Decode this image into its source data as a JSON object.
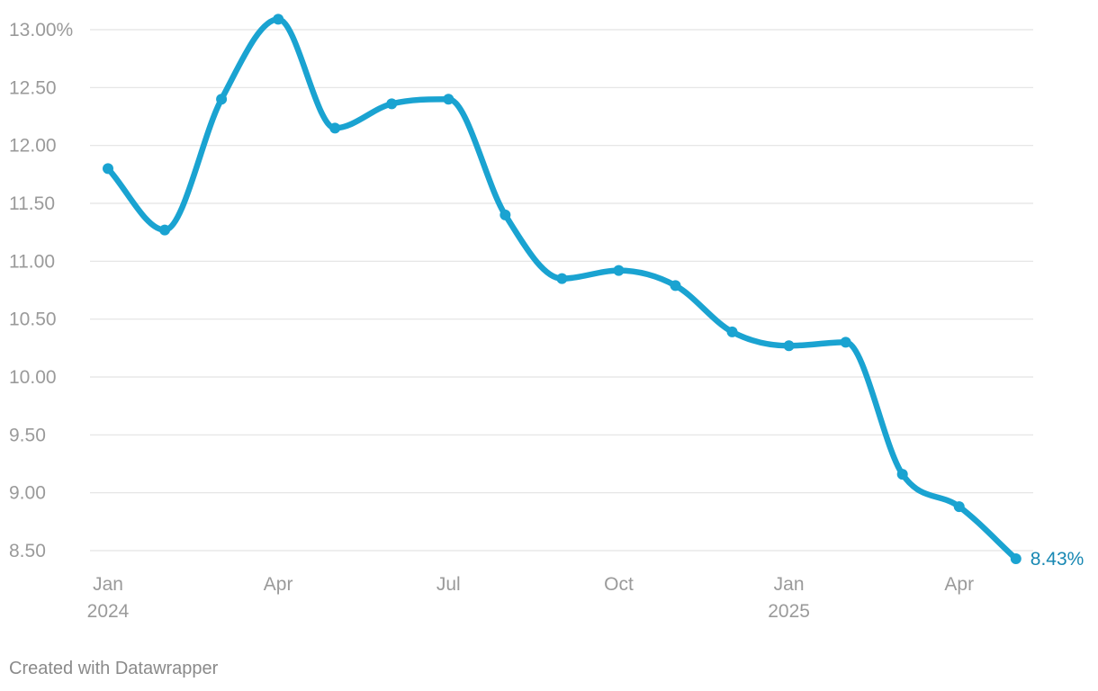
{
  "chart_data": {
    "type": "line",
    "x": [
      "2024-01",
      "2024-02",
      "2024-03",
      "2024-04",
      "2024-05",
      "2024-06",
      "2024-07",
      "2024-08",
      "2024-09",
      "2024-10",
      "2024-11",
      "2024-12",
      "2025-01",
      "2025-02",
      "2025-03",
      "2025-04",
      "2025-05"
    ],
    "series": [
      {
        "values": [
          11.8,
          11.27,
          12.4,
          13.09,
          12.15,
          12.36,
          12.4,
          11.4,
          10.85,
          10.92,
          10.79,
          10.39,
          10.27,
          10.3,
          9.16,
          8.88,
          8.43
        ]
      }
    ],
    "ylim": [
      8.5,
      13.0
    ],
    "y_ticks": [
      {
        "value": 13.0,
        "label": "13.00%"
      },
      {
        "value": 12.5,
        "label": "12.50"
      },
      {
        "value": 12.0,
        "label": "12.00"
      },
      {
        "value": 11.5,
        "label": "11.50"
      },
      {
        "value": 11.0,
        "label": "11.00"
      },
      {
        "value": 10.5,
        "label": "10.50"
      },
      {
        "value": 10.0,
        "label": "10.00"
      },
      {
        "value": 9.5,
        "label": "9.50"
      },
      {
        "value": 9.0,
        "label": "9.00"
      },
      {
        "value": 8.5,
        "label": "8.50"
      }
    ],
    "x_ticks": [
      {
        "x": "2024-01",
        "label": "Jan",
        "sublabel": "2024"
      },
      {
        "x": "2024-04",
        "label": "Apr",
        "sublabel": ""
      },
      {
        "x": "2024-07",
        "label": "Jul",
        "sublabel": ""
      },
      {
        "x": "2024-10",
        "label": "Oct",
        "sublabel": ""
      },
      {
        "x": "2025-01",
        "label": "Jan",
        "sublabel": "2025"
      },
      {
        "x": "2025-04",
        "label": "Apr",
        "sublabel": ""
      }
    ],
    "end_label": "8.43%",
    "grid": true,
    "colors": {
      "line": "#1aa3d1",
      "end_label": "#1888b3",
      "grid": "#e3e3e3",
      "tick_text": "#9a9a9a"
    }
  },
  "footer": {
    "credit": "Created with Datawrapper"
  }
}
